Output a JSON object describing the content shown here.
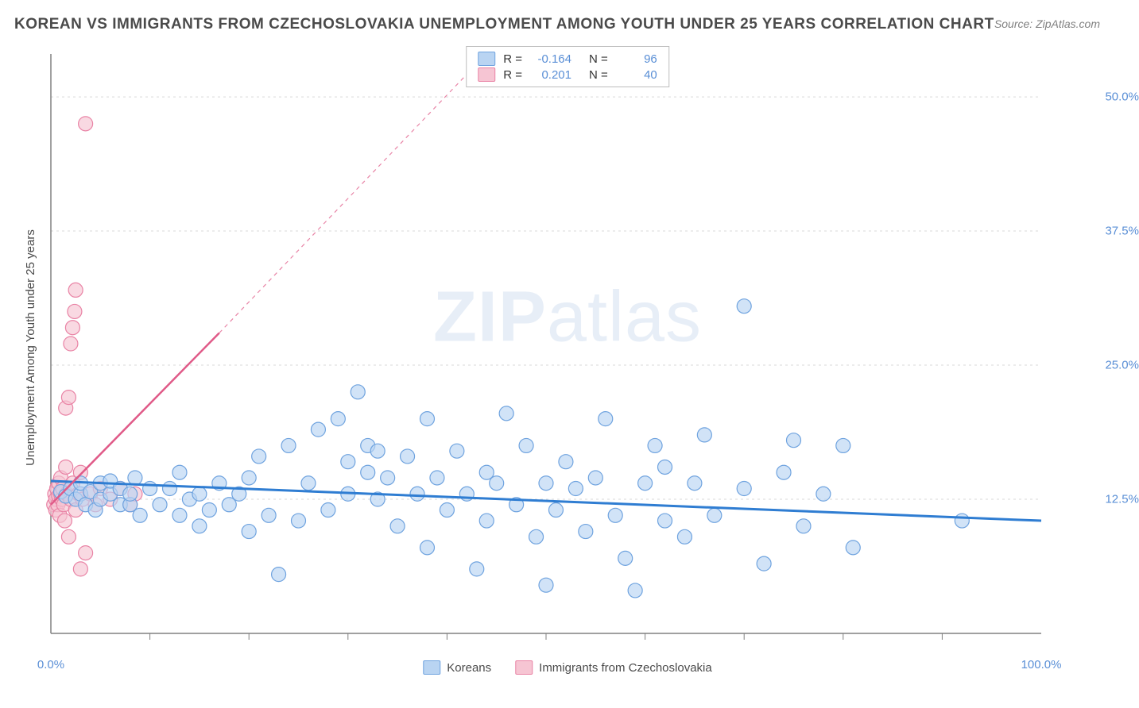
{
  "title": "KOREAN VS IMMIGRANTS FROM CZECHOSLOVAKIA UNEMPLOYMENT AMONG YOUTH UNDER 25 YEARS CORRELATION CHART",
  "source": "Source: ZipAtlas.com",
  "y_axis_label": "Unemployment Among Youth under 25 years",
  "watermark": {
    "bold": "ZIP",
    "light": "atlas"
  },
  "chart": {
    "type": "scatter",
    "xlim": [
      0,
      100
    ],
    "ylim": [
      0,
      54
    ],
    "x_ticks": [
      0,
      100
    ],
    "x_tick_labels": [
      "0.0%",
      "100.0%"
    ],
    "x_minor_ticks": [
      10,
      20,
      30,
      40,
      50,
      60,
      70,
      80,
      90
    ],
    "y_ticks": [
      12.5,
      25.0,
      37.5,
      50.0
    ],
    "y_tick_labels": [
      "12.5%",
      "25.0%",
      "37.5%",
      "50.0%"
    ],
    "grid_color": "#d9d9d9",
    "axis_color": "#808080",
    "background_color": "#ffffff",
    "marker_radius": 9,
    "marker_stroke_width": 1.2,
    "series": [
      {
        "name": "Koreans",
        "label": "Koreans",
        "fill": "#b9d4f2",
        "stroke": "#6fa3df",
        "R": "-0.164",
        "N": "96",
        "regression": {
          "x1": 0,
          "y1": 14.2,
          "x2": 100,
          "y2": 10.5,
          "color": "#2f7dd2",
          "width": 3,
          "dash": ""
        },
        "points": [
          [
            1,
            13.2
          ],
          [
            1.5,
            12.8
          ],
          [
            2,
            13.5
          ],
          [
            2.5,
            12.5
          ],
          [
            3,
            13.0
          ],
          [
            3,
            14.0
          ],
          [
            3.5,
            12.0
          ],
          [
            4,
            13.2
          ],
          [
            4.5,
            11.5
          ],
          [
            5,
            14.0
          ],
          [
            5,
            12.5
          ],
          [
            6,
            13.0
          ],
          [
            6,
            14.2
          ],
          [
            7,
            12.0
          ],
          [
            7,
            13.5
          ],
          [
            8,
            12.0
          ],
          [
            8,
            13.0
          ],
          [
            8.5,
            14.5
          ],
          [
            9,
            11.0
          ],
          [
            10,
            13.5
          ],
          [
            11,
            12.0
          ],
          [
            12,
            13.5
          ],
          [
            13,
            11.0
          ],
          [
            13,
            15.0
          ],
          [
            14,
            12.5
          ],
          [
            15,
            10.0
          ],
          [
            15,
            13.0
          ],
          [
            16,
            11.5
          ],
          [
            17,
            14.0
          ],
          [
            18,
            12.0
          ],
          [
            19,
            13.0
          ],
          [
            20,
            9.5
          ],
          [
            20,
            14.5
          ],
          [
            21,
            16.5
          ],
          [
            22,
            11.0
          ],
          [
            23,
            5.5
          ],
          [
            24,
            17.5
          ],
          [
            25,
            10.5
          ],
          [
            26,
            14.0
          ],
          [
            27,
            19.0
          ],
          [
            28,
            11.5
          ],
          [
            29,
            20.0
          ],
          [
            30,
            13.0
          ],
          [
            30,
            16.0
          ],
          [
            31,
            22.5
          ],
          [
            32,
            15.0
          ],
          [
            32,
            17.5
          ],
          [
            33,
            12.5
          ],
          [
            33,
            17.0
          ],
          [
            34,
            14.5
          ],
          [
            35,
            10.0
          ],
          [
            36,
            16.5
          ],
          [
            37,
            13.0
          ],
          [
            38,
            20.0
          ],
          [
            38,
            8.0
          ],
          [
            39,
            14.5
          ],
          [
            40,
            11.5
          ],
          [
            41,
            17.0
          ],
          [
            42,
            13.0
          ],
          [
            43,
            6.0
          ],
          [
            44,
            15.0
          ],
          [
            44,
            10.5
          ],
          [
            45,
            14.0
          ],
          [
            46,
            20.5
          ],
          [
            47,
            12.0
          ],
          [
            48,
            17.5
          ],
          [
            49,
            9.0
          ],
          [
            50,
            14.0
          ],
          [
            50,
            4.5
          ],
          [
            51,
            11.5
          ],
          [
            52,
            16.0
          ],
          [
            53,
            13.5
          ],
          [
            54,
            9.5
          ],
          [
            55,
            14.5
          ],
          [
            56,
            20.0
          ],
          [
            57,
            11.0
          ],
          [
            58,
            7.0
          ],
          [
            59,
            4.0
          ],
          [
            60,
            14.0
          ],
          [
            61,
            17.5
          ],
          [
            62,
            10.5
          ],
          [
            62,
            15.5
          ],
          [
            64,
            9.0
          ],
          [
            65,
            14.0
          ],
          [
            66,
            18.5
          ],
          [
            67,
            11.0
          ],
          [
            70,
            30.5
          ],
          [
            70,
            13.5
          ],
          [
            72,
            6.5
          ],
          [
            74,
            15.0
          ],
          [
            75,
            18.0
          ],
          [
            76,
            10.0
          ],
          [
            78,
            13.0
          ],
          [
            80,
            17.5
          ],
          [
            81,
            8.0
          ],
          [
            92,
            10.5
          ]
        ]
      },
      {
        "name": "Immigrants from Czechoslovakia",
        "label": "Immigrants from Czechoslovakia",
        "fill": "#f6c5d3",
        "stroke": "#e983a5",
        "R": "0.201",
        "N": "40",
        "regression": {
          "x1": 0,
          "y1": 12.0,
          "x2": 17,
          "y2": 28.0,
          "color": "#e05a88",
          "width": 2.5,
          "dash": ""
        },
        "regression_extended": {
          "x1": 17,
          "y1": 28.0,
          "x2": 45,
          "y2": 55.0,
          "color": "#e884a6",
          "width": 1.2,
          "dash": "5,5"
        },
        "points": [
          [
            0.3,
            12.0
          ],
          [
            0.4,
            13.0
          ],
          [
            0.5,
            11.5
          ],
          [
            0.5,
            12.5
          ],
          [
            0.6,
            13.5
          ],
          [
            0.7,
            12.0
          ],
          [
            0.8,
            12.8
          ],
          [
            0.8,
            14.0
          ],
          [
            0.9,
            11.0
          ],
          [
            1.0,
            13.0
          ],
          [
            1.0,
            14.5
          ],
          [
            1.1,
            12.5
          ],
          [
            1.2,
            13.5
          ],
          [
            1.3,
            12.0
          ],
          [
            1.4,
            10.5
          ],
          [
            1.5,
            15.5
          ],
          [
            1.5,
            21.0
          ],
          [
            1.6,
            13.0
          ],
          [
            1.8,
            9.0
          ],
          [
            1.8,
            22.0
          ],
          [
            2.0,
            12.5
          ],
          [
            2.0,
            27.0
          ],
          [
            2.2,
            14.0
          ],
          [
            2.2,
            28.5
          ],
          [
            2.4,
            30.0
          ],
          [
            2.5,
            11.5
          ],
          [
            2.5,
            32.0
          ],
          [
            2.8,
            13.0
          ],
          [
            3.0,
            15.0
          ],
          [
            3.0,
            6.0
          ],
          [
            3.2,
            12.5
          ],
          [
            3.5,
            7.5
          ],
          [
            3.5,
            47.5
          ],
          [
            4.0,
            13.0
          ],
          [
            4.5,
            12.0
          ],
          [
            5.0,
            13.5
          ],
          [
            6.0,
            12.5
          ],
          [
            7.0,
            13.5
          ],
          [
            8.0,
            12.0
          ],
          [
            8.5,
            13.0
          ]
        ]
      }
    ]
  },
  "legend_top": {
    "R_label": "R =",
    "N_label": "N ="
  }
}
